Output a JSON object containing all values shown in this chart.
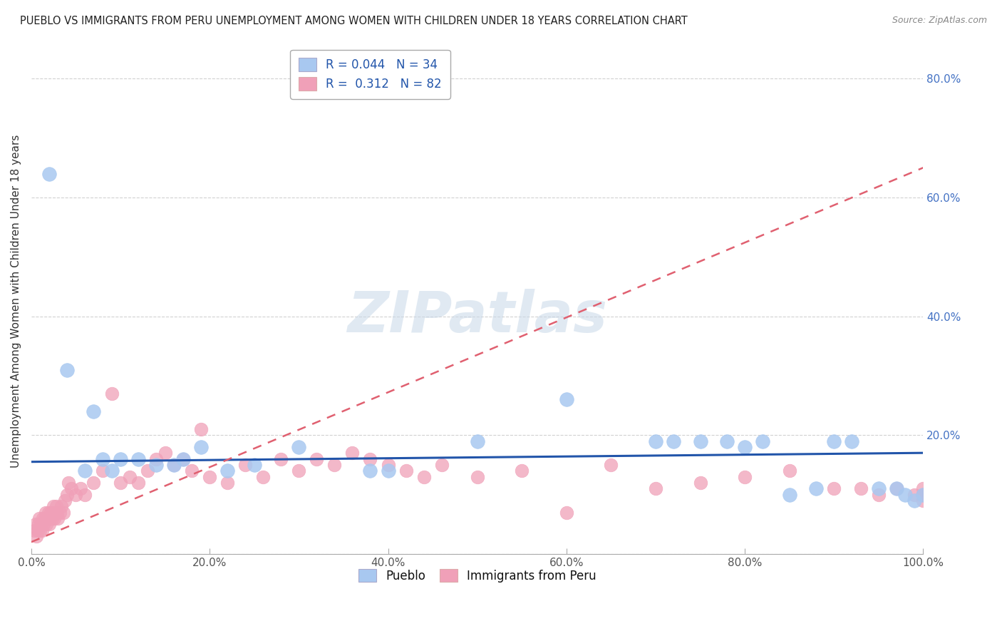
{
  "title": "PUEBLO VS IMMIGRANTS FROM PERU UNEMPLOYMENT AMONG WOMEN WITH CHILDREN UNDER 18 YEARS CORRELATION CHART",
  "source": "Source: ZipAtlas.com",
  "ylabel": "Unemployment Among Women with Children Under 18 years",
  "watermark": "ZIPatlas",
  "legend1_label": "R = 0.044   N = 34",
  "legend2_label": "R =  0.312   N = 82",
  "pueblo_color": "#a8c8f0",
  "peru_color": "#f0a0b8",
  "line1_color": "#2255aa",
  "line2_color": "#e06070",
  "background_color": "#ffffff",
  "xlim": [
    0,
    1.0
  ],
  "ylim": [
    0,
    0.85
  ],
  "xticks": [
    0.0,
    0.2,
    0.4,
    0.6,
    0.8,
    1.0
  ],
  "yticks": [
    0.0,
    0.2,
    0.4,
    0.6,
    0.8
  ],
  "xtick_labels": [
    "0.0%",
    "20.0%",
    "40.0%",
    "60.0%",
    "80.0%",
    "100.0%"
  ],
  "ytick_labels": [
    "",
    "20.0%",
    "40.0%",
    "60.0%",
    "80.0%"
  ],
  "pueblo_x": [
    0.02,
    0.04,
    0.06,
    0.07,
    0.08,
    0.09,
    0.1,
    0.12,
    0.14,
    0.16,
    0.17,
    0.19,
    0.22,
    0.25,
    0.3,
    0.38,
    0.4,
    0.5,
    0.6,
    0.7,
    0.72,
    0.75,
    0.78,
    0.8,
    0.82,
    0.85,
    0.88,
    0.9,
    0.92,
    0.95,
    0.97,
    0.98,
    0.99,
    1.0
  ],
  "pueblo_y": [
    0.64,
    0.31,
    0.14,
    0.24,
    0.16,
    0.14,
    0.16,
    0.16,
    0.15,
    0.15,
    0.16,
    0.18,
    0.14,
    0.15,
    0.18,
    0.14,
    0.14,
    0.19,
    0.26,
    0.19,
    0.19,
    0.19,
    0.19,
    0.18,
    0.19,
    0.1,
    0.11,
    0.19,
    0.19,
    0.11,
    0.11,
    0.1,
    0.09,
    0.1
  ],
  "peru_x": [
    0.003,
    0.005,
    0.006,
    0.007,
    0.008,
    0.009,
    0.01,
    0.011,
    0.012,
    0.013,
    0.014,
    0.015,
    0.016,
    0.017,
    0.018,
    0.019,
    0.02,
    0.021,
    0.022,
    0.023,
    0.024,
    0.025,
    0.026,
    0.027,
    0.028,
    0.029,
    0.03,
    0.032,
    0.034,
    0.036,
    0.038,
    0.04,
    0.042,
    0.045,
    0.05,
    0.055,
    0.06,
    0.07,
    0.08,
    0.09,
    0.1,
    0.11,
    0.12,
    0.13,
    0.14,
    0.15,
    0.16,
    0.17,
    0.18,
    0.19,
    0.2,
    0.22,
    0.24,
    0.26,
    0.28,
    0.3,
    0.32,
    0.34,
    0.36,
    0.38,
    0.4,
    0.42,
    0.44,
    0.46,
    0.5,
    0.55,
    0.6,
    0.65,
    0.7,
    0.75,
    0.8,
    0.85,
    0.9,
    0.93,
    0.95,
    0.97,
    0.99,
    1.0,
    1.0,
    1.0,
    1.0,
    1.0
  ],
  "peru_y": [
    0.04,
    0.05,
    0.03,
    0.04,
    0.05,
    0.06,
    0.04,
    0.05,
    0.04,
    0.06,
    0.05,
    0.06,
    0.07,
    0.05,
    0.06,
    0.07,
    0.05,
    0.06,
    0.07,
    0.06,
    0.07,
    0.08,
    0.06,
    0.07,
    0.08,
    0.07,
    0.06,
    0.07,
    0.08,
    0.07,
    0.09,
    0.1,
    0.12,
    0.11,
    0.1,
    0.11,
    0.1,
    0.12,
    0.14,
    0.27,
    0.12,
    0.13,
    0.12,
    0.14,
    0.16,
    0.17,
    0.15,
    0.16,
    0.14,
    0.21,
    0.13,
    0.12,
    0.15,
    0.13,
    0.16,
    0.14,
    0.16,
    0.15,
    0.17,
    0.16,
    0.15,
    0.14,
    0.13,
    0.15,
    0.13,
    0.14,
    0.07,
    0.15,
    0.11,
    0.12,
    0.13,
    0.14,
    0.11,
    0.11,
    0.1,
    0.11,
    0.1,
    0.11,
    0.1,
    0.09,
    0.1,
    0.1
  ]
}
